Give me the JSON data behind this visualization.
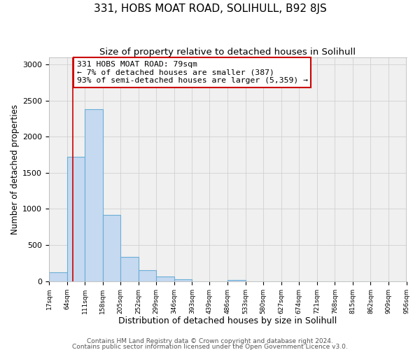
{
  "title": "331, HOBS MOAT ROAD, SOLIHULL, B92 8JS",
  "subtitle": "Size of property relative to detached houses in Solihull",
  "xlabel": "Distribution of detached houses by size in Solihull",
  "ylabel": "Number of detached properties",
  "bar_edges": [
    17,
    64,
    111,
    158,
    205,
    252,
    299,
    346,
    393,
    439,
    486,
    533,
    580,
    627,
    674,
    721,
    768,
    815,
    862,
    909,
    956
  ],
  "bar_heights": [
    120,
    1720,
    2380,
    920,
    340,
    155,
    65,
    30,
    0,
    0,
    18,
    0,
    0,
    0,
    0,
    0,
    0,
    0,
    0,
    0
  ],
  "bar_color": "#c5d9f0",
  "bar_edge_color": "#6baed6",
  "bar_linewidth": 0.8,
  "vline_x": 79,
  "vline_color": "#cc0000",
  "vline_linewidth": 1.2,
  "annotation_box_text": "331 HOBS MOAT ROAD: 79sqm\n← 7% of detached houses are smaller (387)\n93% of semi-detached houses are larger (5,359) →",
  "annotation_box_color": "#ffffff",
  "annotation_box_edgecolor": "#cc0000",
  "annotation_fontsize": 8.2,
  "ylim": [
    0,
    3100
  ],
  "yticks": [
    0,
    500,
    1000,
    1500,
    2000,
    2500,
    3000
  ],
  "tick_labels": [
    "17sqm",
    "64sqm",
    "111sqm",
    "158sqm",
    "205sqm",
    "252sqm",
    "299sqm",
    "346sqm",
    "393sqm",
    "439sqm",
    "486sqm",
    "533sqm",
    "580sqm",
    "627sqm",
    "674sqm",
    "721sqm",
    "768sqm",
    "815sqm",
    "862sqm",
    "909sqm",
    "956sqm"
  ],
  "grid_color": "#d0d0d0",
  "bg_color": "#f0f0f0",
  "footer_line1": "Contains HM Land Registry data © Crown copyright and database right 2024.",
  "footer_line2": "Contains public sector information licensed under the Open Government Licence v3.0.",
  "title_fontsize": 11,
  "subtitle_fontsize": 9.5,
  "xlabel_fontsize": 9,
  "ylabel_fontsize": 8.5,
  "footer_fontsize": 6.5,
  "ytick_fontsize": 8,
  "xtick_fontsize": 6.5
}
